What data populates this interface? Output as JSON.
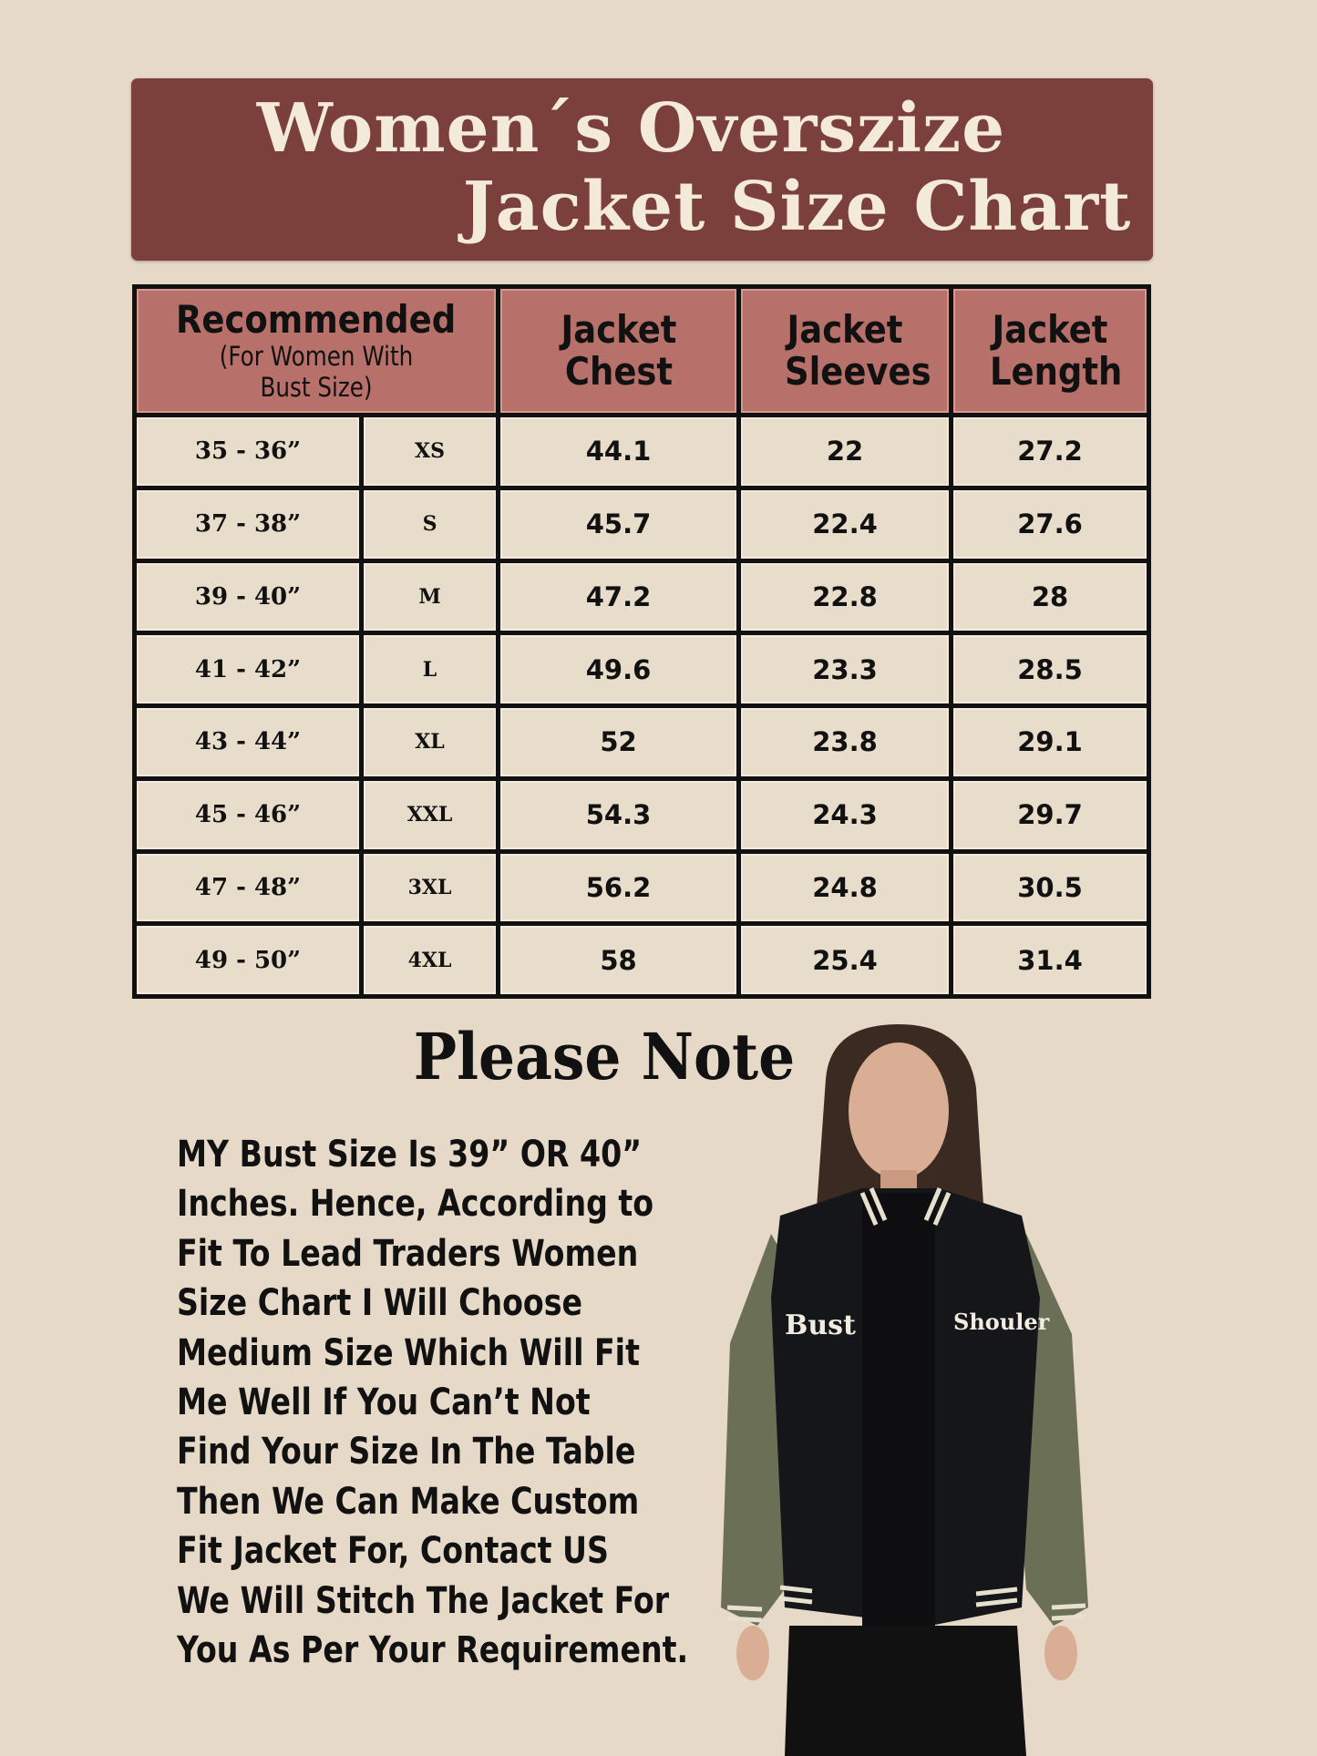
{
  "title": {
    "line1": "Women´s Overszize",
    "line2": "Jacket Size Chart"
  },
  "colors": {
    "background": "#e6d9c8",
    "title_bg": "#7b3f3c",
    "header_bg": "#b8706a",
    "cell_bg": "#e8dccb",
    "border": "#111111"
  },
  "table": {
    "headers": {
      "recommended": "Recommended",
      "recommended_sub": "(For Women With Bust Size)",
      "chest": "Jacket Chest",
      "sleeves": "Jacket Sleeves",
      "length": "Jacket Length"
    },
    "rows": [
      {
        "bust": "35 - 36”",
        "size": "XS",
        "chest": "44.1",
        "sleeves": "22",
        "length": "27.2"
      },
      {
        "bust": "37 - 38”",
        "size": "S",
        "chest": "45.7",
        "sleeves": "22.4",
        "length": "27.6"
      },
      {
        "bust": "39 - 40”",
        "size": "M",
        "chest": "47.2",
        "sleeves": "22.8",
        "length": "28"
      },
      {
        "bust": "41 - 42”",
        "size": "L",
        "chest": "49.6",
        "sleeves": "23.3",
        "length": "28.5"
      },
      {
        "bust": "43 - 44”",
        "size": "XL",
        "chest": "52",
        "sleeves": "23.8",
        "length": "29.1"
      },
      {
        "bust": "45 - 46”",
        "size": "XXL",
        "chest": "54.3",
        "sleeves": "24.3",
        "length": "29.7"
      },
      {
        "bust": "47 - 48”",
        "size": "3XL",
        "chest": "56.2",
        "sleeves": "24.8",
        "length": "30.5"
      },
      {
        "bust": "49 - 50”",
        "size": "4XL",
        "chest": "58",
        "sleeves": "25.4",
        "length": "31.4"
      }
    ]
  },
  "note": {
    "title": "Please Note",
    "lines": [
      "MY Bust Size Is 39” OR 40”",
      "Inches. Hence, According to",
      "Fit To Lead Traders Women",
      "Size Chart I Will Choose",
      "Medium Size Which Will Fit",
      "Me Well If You Can’t Not",
      "Find Your Size In The Table",
      "Then We Can Make Custom",
      "Fit Jacket For, Contact US",
      "We Will Stitch The Jacket For",
      "You As Per Your Requirement."
    ]
  },
  "model_image": {
    "label_bust": "Bust",
    "label_shoulder": "Shouler"
  }
}
